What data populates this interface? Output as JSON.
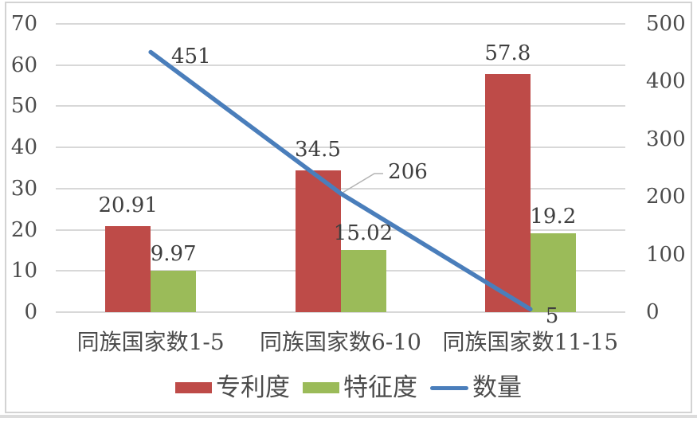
{
  "chart_data": {
    "type": "combo",
    "title": "",
    "categories": [
      "同族国家数1-5",
      "同族国家数6-10",
      "同族国家数11-15"
    ],
    "series": [
      {
        "id": "patent-degree",
        "name": "专利度",
        "type": "bar",
        "axis": "left",
        "color": "#be4b48",
        "values": [
          20.91,
          34.5,
          57.8
        ],
        "labels": [
          "20.91",
          "34.5",
          "57.8"
        ]
      },
      {
        "id": "feature-degree",
        "name": "特征度",
        "type": "bar",
        "axis": "left",
        "color": "#9bbb59",
        "values": [
          9.97,
          15.02,
          19.2
        ],
        "labels": [
          "9.97",
          "15.02",
          "19.2"
        ]
      },
      {
        "id": "count",
        "name": "数量",
        "type": "line",
        "axis": "right",
        "color": "#4a7ebb",
        "values": [
          451,
          206,
          5
        ],
        "labels": [
          "451",
          "206",
          "5"
        ]
      }
    ],
    "left_axis": {
      "min": 0,
      "max": 70,
      "step": 10,
      "ticks": [
        "0",
        "10",
        "20",
        "30",
        "40",
        "50",
        "60",
        "70"
      ]
    },
    "right_axis": {
      "min": 0,
      "max": 500,
      "step": 100,
      "ticks": [
        "0",
        "100",
        "200",
        "300",
        "400",
        "500"
      ]
    },
    "grid": true,
    "legend_position": "bottom"
  },
  "colors": {
    "bar_red": "#be4b48",
    "bar_green": "#9bbb59",
    "line_blue": "#4a7ebb",
    "gridline": "#d8d8d8",
    "frame": "#d3d3d3",
    "text": "#4c4c4c",
    "leader_line": "#b3b3b3",
    "background": "#ffffff"
  }
}
